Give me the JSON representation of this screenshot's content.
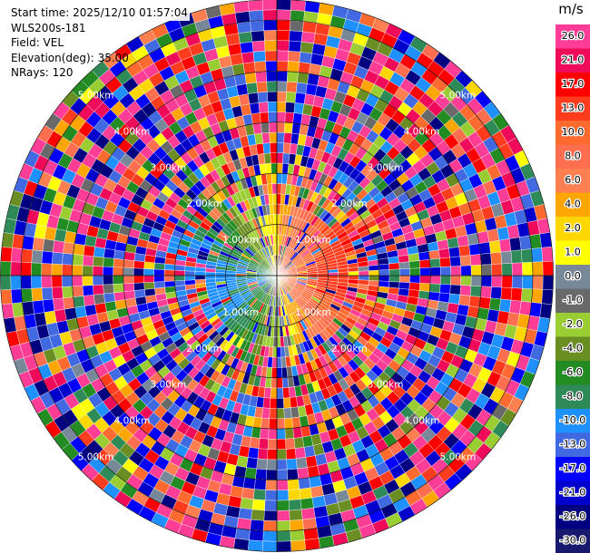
{
  "info": {
    "start_time": "Start time: 2025/12/10 01:57:04",
    "instrument": "WLS200s-181",
    "field": "Field: VEL",
    "elevation": "Elevation(deg): 35.00",
    "nrays": "NRays: 120"
  },
  "chart_data": {
    "type": "heatmap",
    "projection": "polar-ppi",
    "field": "VEL",
    "instrument": "WLS200s-181",
    "start_time": "2025/12/10 01:57:04",
    "elevation_deg": 35.0,
    "n_rays": 120,
    "range_rings": [
      {
        "range_km": 1.0,
        "label": "1.00km"
      },
      {
        "range_km": 2.0,
        "label": "2.00km"
      },
      {
        "range_km": 3.0,
        "label": "3.00km"
      },
      {
        "range_km": 4.0,
        "label": "4.00km"
      },
      {
        "range_km": 5.0,
        "label": "5.00km"
      }
    ],
    "max_range_km": 5.4,
    "range_gates": 27,
    "colorbar": {
      "unit": "m/s",
      "tick_labels": [
        "26.0",
        "21.0",
        "17.0",
        "13.0",
        "10.0",
        "8.0",
        "6.0",
        "4.0",
        "2.0",
        "1.0",
        "0.0",
        "-1.0",
        "-2.0",
        "-4.0",
        "-6.0",
        "-8.0",
        "-10.0",
        "-13.0",
        "-17.0",
        "-21.0",
        "-26.0",
        "-30.0"
      ],
      "colors": [
        "#ff3d96",
        "#f00a5a",
        "#ff0000",
        "#ff3c1e",
        "#ff6a2e",
        "#ff6e4e",
        "#ff7f50",
        "#ffa500",
        "#ffd700",
        "#ffff00",
        "#778899",
        "#696969",
        "#9acd32",
        "#6b8e23",
        "#228b22",
        "#2e8b57",
        "#1e90ff",
        "#4169e1",
        "#0000ff",
        "#0000cd",
        "#000080",
        "#191970"
      ]
    },
    "pattern": {
      "receding_azimuth_deg": 80,
      "approaching_azimuth_deg": 260,
      "max_speed_ms": 12.0,
      "noise_start_range_km": 1.4
    },
    "grid": true
  }
}
